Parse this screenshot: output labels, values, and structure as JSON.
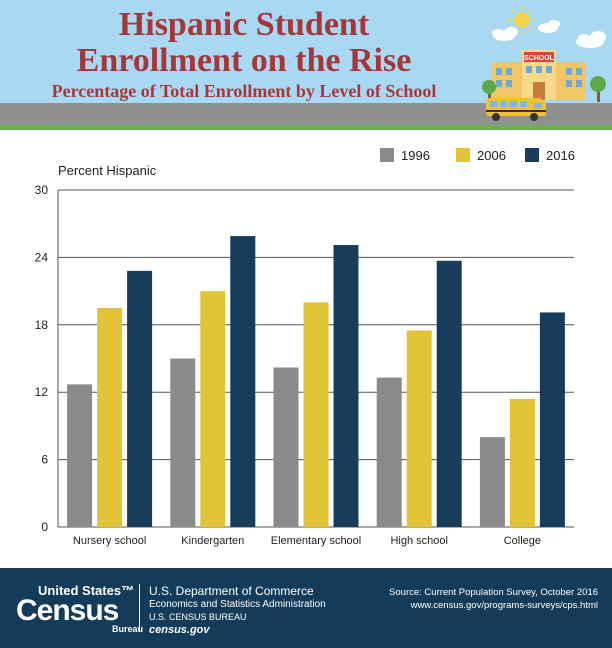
{
  "header": {
    "title_line1": "Hispanic Student",
    "title_line2": "Enrollment on the Rise",
    "subtitle": "Percentage of Total Enrollment by Level of School",
    "school_sign": "SCHOOL",
    "colors": {
      "title": "#a5373a",
      "sky": "#a9d8f2",
      "road": "#8e9091",
      "grass": "#6db052"
    }
  },
  "chart_data": {
    "type": "bar",
    "title": "Hispanic Student Enrollment on the Rise",
    "subtitle": "Percentage of Total Enrollment by Level of School",
    "ylabel": "Percent Hispanic",
    "xlabel": "",
    "ylim": [
      0,
      30
    ],
    "yticks": [
      0,
      6,
      12,
      18,
      24,
      30
    ],
    "grid": true,
    "legend_position": "top-right",
    "categories": [
      "Nursery school",
      "Kindergarten",
      "Elementary school",
      "High school",
      "College"
    ],
    "series": [
      {
        "name": "1996",
        "color": "#8a8a8d",
        "values": [
          12.7,
          15.0,
          14.2,
          13.3,
          8.0
        ]
      },
      {
        "name": "2006",
        "color": "#e3c437",
        "values": [
          19.5,
          21.0,
          20.0,
          17.5,
          11.4
        ]
      },
      {
        "name": "2016",
        "color": "#163d5c",
        "values": [
          22.8,
          25.9,
          25.1,
          23.7,
          19.1
        ]
      }
    ]
  },
  "footer": {
    "logo_line1": "United States™",
    "logo_line2": "Census",
    "logo_line3": "Bureau",
    "department": "U.S. Department of Commerce",
    "administration": "Economics and Statistics Administration",
    "bureau": "U.S. CENSUS BUREAU",
    "website": "census.gov",
    "source": "Source: Current Population Survey, October 2016",
    "source_url": "www.census.gov/programs-surveys/cps.html",
    "colors": {
      "background": "#143c5a"
    }
  }
}
